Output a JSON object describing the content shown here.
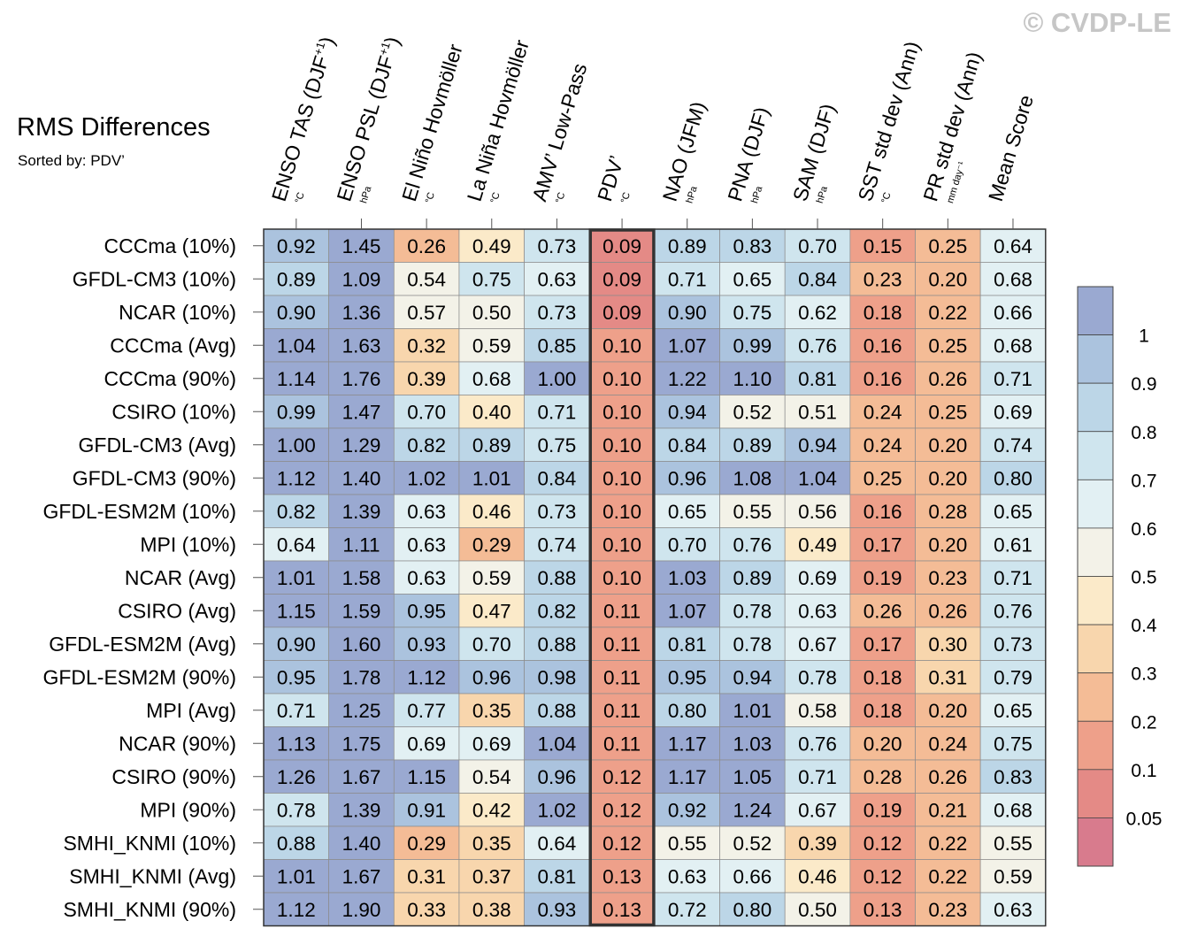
{
  "watermark": "© CVDP-LE",
  "chart_data": {
    "type": "heatmap",
    "title": "RMS Differences",
    "subtitle": "Sorted by: PDV’",
    "highlighted_column": 5,
    "columns": [
      {
        "name": "ENSO TAS (DJF",
        "sup": "+1",
        "close": ")",
        "unit": "°C"
      },
      {
        "name": "ENSO PSL (DJF",
        "sup": "+1",
        "close": ")",
        "unit": "hPa"
      },
      {
        "name": "El Niño Hovmöller",
        "sup": "",
        "close": "",
        "unit": "°C"
      },
      {
        "name": "La Niña Hovmöller",
        "sup": "",
        "close": "",
        "unit": "°C"
      },
      {
        "name": "AMV’ Low-Pass",
        "sup": "",
        "close": "",
        "unit": "°C"
      },
      {
        "name": "PDV’",
        "sup": "",
        "close": "",
        "unit": "°C"
      },
      {
        "name": "NAO (JFM)",
        "sup": "",
        "close": "",
        "unit": "hPa"
      },
      {
        "name": "PNA (DJF)",
        "sup": "",
        "close": "",
        "unit": "hPa"
      },
      {
        "name": "SAM (DJF)",
        "sup": "",
        "close": "",
        "unit": "hPa"
      },
      {
        "name": "SST std dev (Ann)",
        "sup": "",
        "close": "",
        "unit": "°C"
      },
      {
        "name": "PR std dev (Ann)",
        "sup": "",
        "close": "",
        "unit": "mm day⁻¹"
      },
      {
        "name": "Mean Score",
        "sup": "",
        "close": "",
        "unit": ""
      }
    ],
    "rows": [
      "CCCma (10%)",
      "GFDL-CM3 (10%)",
      "NCAR (10%)",
      "CCCma (Avg)",
      "CCCma (90%)",
      "CSIRO (10%)",
      "GFDL-CM3 (Avg)",
      "GFDL-CM3 (90%)",
      "GFDL-ESM2M (10%)",
      "MPI (10%)",
      "NCAR (Avg)",
      "CSIRO (Avg)",
      "GFDL-ESM2M (Avg)",
      "GFDL-ESM2M (90%)",
      "MPI (Avg)",
      "NCAR (90%)",
      "CSIRO (90%)",
      "MPI (90%)",
      "SMHI_KNMI (10%)",
      "SMHI_KNMI (Avg)",
      "SMHI_KNMI (90%)"
    ],
    "values": [
      [
        "0.92",
        "1.45",
        "0.26",
        "0.49",
        "0.73",
        "0.09",
        "0.89",
        "0.83",
        "0.70",
        "0.15",
        "0.25",
        "0.64"
      ],
      [
        "0.89",
        "1.09",
        "0.54",
        "0.75",
        "0.63",
        "0.09",
        "0.71",
        "0.65",
        "0.84",
        "0.23",
        "0.20",
        "0.68"
      ],
      [
        "0.90",
        "1.36",
        "0.57",
        "0.50",
        "0.73",
        "0.09",
        "0.90",
        "0.75",
        "0.62",
        "0.18",
        "0.22",
        "0.66"
      ],
      [
        "1.04",
        "1.63",
        "0.32",
        "0.59",
        "0.85",
        "0.10",
        "1.07",
        "0.99",
        "0.76",
        "0.16",
        "0.25",
        "0.68"
      ],
      [
        "1.14",
        "1.76",
        "0.39",
        "0.68",
        "1.00",
        "0.10",
        "1.22",
        "1.10",
        "0.81",
        "0.16",
        "0.26",
        "0.71"
      ],
      [
        "0.99",
        "1.47",
        "0.70",
        "0.40",
        "0.71",
        "0.10",
        "0.94",
        "0.52",
        "0.51",
        "0.24",
        "0.25",
        "0.69"
      ],
      [
        "1.00",
        "1.29",
        "0.82",
        "0.89",
        "0.75",
        "0.10",
        "0.84",
        "0.89",
        "0.94",
        "0.24",
        "0.20",
        "0.74"
      ],
      [
        "1.12",
        "1.40",
        "1.02",
        "1.01",
        "0.84",
        "0.10",
        "0.96",
        "1.08",
        "1.04",
        "0.25",
        "0.20",
        "0.80"
      ],
      [
        "0.82",
        "1.39",
        "0.63",
        "0.46",
        "0.73",
        "0.10",
        "0.65",
        "0.55",
        "0.56",
        "0.16",
        "0.28",
        "0.65"
      ],
      [
        "0.64",
        "1.11",
        "0.63",
        "0.29",
        "0.74",
        "0.10",
        "0.70",
        "0.76",
        "0.49",
        "0.17",
        "0.20",
        "0.61"
      ],
      [
        "1.01",
        "1.58",
        "0.63",
        "0.59",
        "0.88",
        "0.10",
        "1.03",
        "0.89",
        "0.69",
        "0.19",
        "0.23",
        "0.71"
      ],
      [
        "1.15",
        "1.59",
        "0.95",
        "0.47",
        "0.82",
        "0.11",
        "1.07",
        "0.78",
        "0.63",
        "0.26",
        "0.26",
        "0.76"
      ],
      [
        "0.90",
        "1.60",
        "0.93",
        "0.70",
        "0.88",
        "0.11",
        "0.81",
        "0.78",
        "0.67",
        "0.17",
        "0.30",
        "0.73"
      ],
      [
        "0.95",
        "1.78",
        "1.12",
        "0.96",
        "0.98",
        "0.11",
        "0.95",
        "0.94",
        "0.78",
        "0.18",
        "0.31",
        "0.79"
      ],
      [
        "0.71",
        "1.25",
        "0.77",
        "0.35",
        "0.88",
        "0.11",
        "0.80",
        "1.01",
        "0.58",
        "0.18",
        "0.20",
        "0.65"
      ],
      [
        "1.13",
        "1.75",
        "0.69",
        "0.69",
        "1.04",
        "0.11",
        "1.17",
        "1.03",
        "0.76",
        "0.20",
        "0.24",
        "0.75"
      ],
      [
        "1.26",
        "1.67",
        "1.15",
        "0.54",
        "0.96",
        "0.12",
        "1.17",
        "1.05",
        "0.71",
        "0.28",
        "0.26",
        "0.83"
      ],
      [
        "0.78",
        "1.39",
        "0.91",
        "0.42",
        "1.02",
        "0.12",
        "0.92",
        "1.24",
        "0.67",
        "0.19",
        "0.21",
        "0.68"
      ],
      [
        "0.88",
        "1.40",
        "0.29",
        "0.35",
        "0.64",
        "0.12",
        "0.55",
        "0.52",
        "0.39",
        "0.12",
        "0.22",
        "0.55"
      ],
      [
        "1.01",
        "1.67",
        "0.31",
        "0.37",
        "0.81",
        "0.13",
        "0.63",
        "0.66",
        "0.46",
        "0.12",
        "0.22",
        "0.59"
      ],
      [
        "1.12",
        "1.90",
        "0.33",
        "0.38",
        "0.93",
        "0.13",
        "0.72",
        "0.80",
        "0.50",
        "0.13",
        "0.23",
        "0.63"
      ]
    ],
    "colorbar": {
      "tick_labels": [
        "1",
        "0.9",
        "0.8",
        "0.7",
        "0.6",
        "0.5",
        "0.4",
        "0.3",
        "0.2",
        "0.1",
        "0.05"
      ],
      "levels": [
        1,
        0.9,
        0.8,
        0.7,
        0.6,
        0.5,
        0.4,
        0.3,
        0.2,
        0.1,
        0.05
      ],
      "colors": [
        "#9aa9d1",
        "#abc3de",
        "#bcd6e7",
        "#cfe5ee",
        "#e2f0f3",
        "#f3f2e8",
        "#fbeac9",
        "#f8d6ad",
        "#f4bc96",
        "#eea08a",
        "#e48a86",
        "#d87b8d"
      ]
    }
  }
}
